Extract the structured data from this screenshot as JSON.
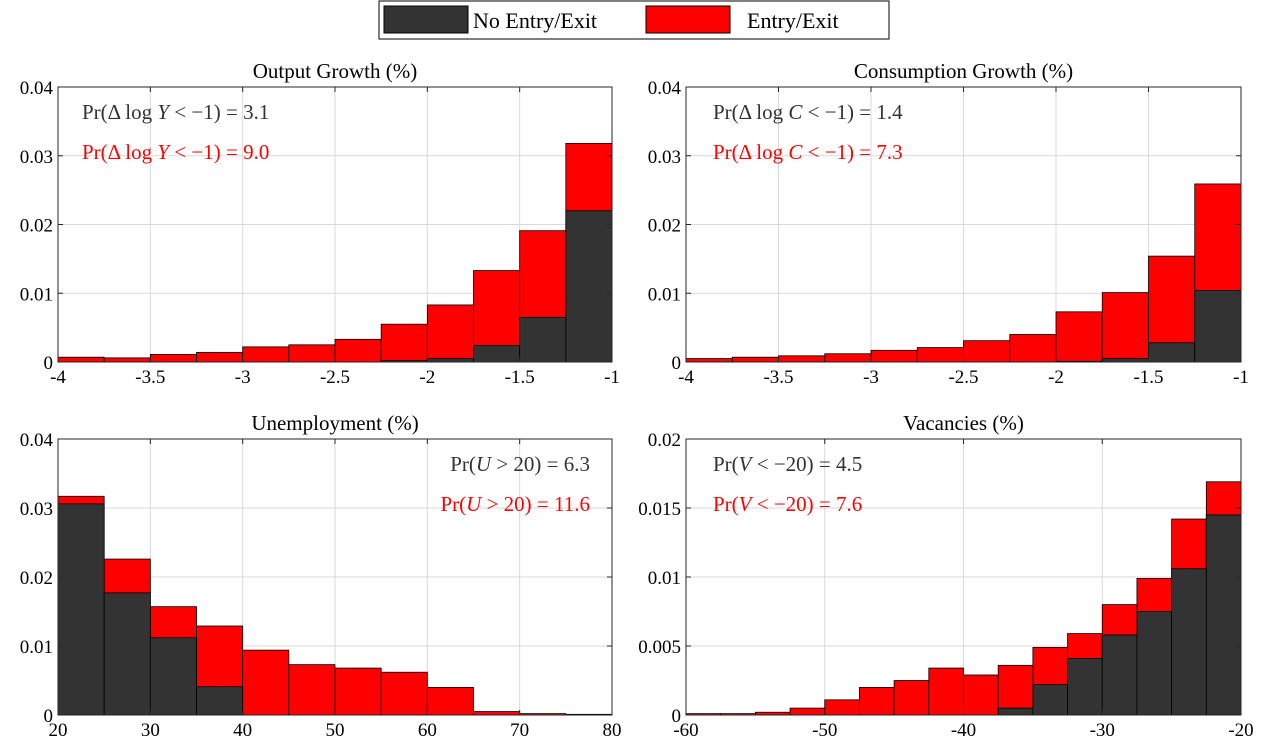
{
  "legend": {
    "entries": [
      {
        "label": "No Entry/Exit",
        "color": "#333333"
      },
      {
        "label": "Entry/Exit",
        "color": "#ff0000"
      }
    ]
  },
  "colors": {
    "no_entry_exit": "#333333",
    "entry_exit": "#ff0000"
  },
  "chart_data": [
    {
      "type": "bar",
      "subtype": "overlaid-histogram",
      "title": "Output Growth (%)",
      "xlim": [
        -4,
        -1
      ],
      "ylim": [
        0,
        0.04
      ],
      "xticks": [
        -4,
        -3.5,
        -3,
        -2.5,
        -2,
        -1.5,
        -1
      ],
      "xtick_labels": [
        "-4",
        "-3.5",
        "-3",
        "-2.5",
        "-2",
        "-1.5",
        "-1"
      ],
      "yticks": [
        0,
        0.01,
        0.02,
        0.03,
        0.04
      ],
      "ytick_labels": [
        "0",
        "0.01",
        "0.02",
        "0.03",
        "0.04"
      ],
      "grid": true,
      "bin_edges": [
        -4,
        -3.75,
        -3.5,
        -3.25,
        -3,
        -2.75,
        -2.5,
        -2.25,
        -2,
        -1.75,
        -1.5,
        -1.25,
        -1
      ],
      "series": [
        {
          "name": "Entry/Exit",
          "color": "#ff0000",
          "values": [
            0.0007,
            0.0006,
            0.0011,
            0.0014,
            0.0022,
            0.0025,
            0.0033,
            0.0055,
            0.0083,
            0.0133,
            0.0191,
            0.0318
          ]
        },
        {
          "name": "No Entry/Exit",
          "color": "#333333",
          "values": [
            0,
            0,
            0,
            0,
            0,
            0,
            0,
            0.0002,
            0.0005,
            0.0024,
            0.0065,
            0.022
          ]
        }
      ],
      "annotations": [
        {
          "text": "Pr(Δ log Y < −1) = 3.1",
          "color": "#333333"
        },
        {
          "text": "Pr(Δ log Y < −1) = 9.0",
          "color": "#ff0000"
        }
      ]
    },
    {
      "type": "bar",
      "subtype": "overlaid-histogram",
      "title": "Consumption Growth (%)",
      "xlim": [
        -4,
        -1
      ],
      "ylim": [
        0,
        0.04
      ],
      "xticks": [
        -4,
        -3.5,
        -3,
        -2.5,
        -2,
        -1.5,
        -1
      ],
      "xtick_labels": [
        "-4",
        "-3.5",
        "-3",
        "-2.5",
        "-2",
        "-1.5",
        "-1"
      ],
      "yticks": [
        0,
        0.01,
        0.02,
        0.03,
        0.04
      ],
      "ytick_labels": [
        "0",
        "0.01",
        "0.02",
        "0.03",
        "0.04"
      ],
      "grid": true,
      "bin_edges": [
        -4,
        -3.75,
        -3.5,
        -3.25,
        -3,
        -2.75,
        -2.5,
        -2.25,
        -2,
        -1.75,
        -1.5,
        -1.25,
        -1
      ],
      "series": [
        {
          "name": "Entry/Exit",
          "color": "#ff0000",
          "values": [
            0.0005,
            0.0007,
            0.0009,
            0.0012,
            0.0017,
            0.0021,
            0.0031,
            0.004,
            0.0073,
            0.0101,
            0.0154,
            0.0259
          ]
        },
        {
          "name": "No Entry/Exit",
          "color": "#333333",
          "values": [
            0,
            0,
            0,
            0,
            0,
            0,
            0,
            0,
            0.0001,
            0.0005,
            0.0028,
            0.0104
          ]
        }
      ],
      "annotations": [
        {
          "text": "Pr(Δ log C < −1) = 1.4",
          "color": "#333333"
        },
        {
          "text": "Pr(Δ log C < −1) = 7.3",
          "color": "#ff0000"
        }
      ]
    },
    {
      "type": "bar",
      "subtype": "overlaid-histogram",
      "title": "Unemployment (%)",
      "xlim": [
        20,
        80
      ],
      "ylim": [
        0,
        0.04
      ],
      "xticks": [
        20,
        30,
        40,
        50,
        60,
        70,
        80
      ],
      "xtick_labels": [
        "20",
        "30",
        "40",
        "50",
        "60",
        "70",
        "80"
      ],
      "yticks": [
        0,
        0.01,
        0.02,
        0.03,
        0.04
      ],
      "ytick_labels": [
        "0",
        "0.01",
        "0.02",
        "0.03",
        "0.04"
      ],
      "grid": true,
      "bin_edges": [
        20,
        25,
        30,
        35,
        40,
        45,
        50,
        55,
        60,
        65,
        70,
        75,
        80
      ],
      "series": [
        {
          "name": "Entry/Exit",
          "color": "#ff0000",
          "values": [
            0.0317,
            0.0226,
            0.0157,
            0.0129,
            0.0094,
            0.0073,
            0.0068,
            0.0062,
            0.004,
            0.0005,
            0.0002,
            0.0001
          ]
        },
        {
          "name": "No Entry/Exit",
          "color": "#333333",
          "values": [
            0.0306,
            0.0177,
            0.0112,
            0.0041,
            0,
            0,
            0,
            0,
            0,
            0,
            0,
            0
          ]
        }
      ],
      "annotations": [
        {
          "text": "Pr(U > 20) = 6.3",
          "color": "#333333"
        },
        {
          "text": "Pr(U > 20) = 11.6",
          "color": "#ff0000"
        }
      ]
    },
    {
      "type": "bar",
      "subtype": "overlaid-histogram",
      "title": "Vacancies (%)",
      "xlim": [
        -60,
        -20
      ],
      "ylim": [
        0,
        0.02
      ],
      "xticks": [
        -60,
        -50,
        -40,
        -30,
        -20
      ],
      "xtick_labels": [
        "-60",
        "-50",
        "-40",
        "-30",
        "-20"
      ],
      "yticks": [
        0,
        0.005,
        0.01,
        0.015,
        0.02
      ],
      "ytick_labels": [
        "0",
        "0.005",
        "0.01",
        "0.015",
        "0.02"
      ],
      "grid": true,
      "bin_edges": [
        -60,
        -57.5,
        -55,
        -52.5,
        -50,
        -47.5,
        -45,
        -42.5,
        -40,
        -37.5,
        -35,
        -32.5,
        -30,
        -27.5,
        -25,
        -22.5,
        -20
      ],
      "series": [
        {
          "name": "Entry/Exit",
          "color": "#ff0000",
          "values": [
            0.0001,
            0.0001,
            0.0002,
            0.0005,
            0.0011,
            0.002,
            0.0025,
            0.0034,
            0.0029,
            0.0036,
            0.0049,
            0.0059,
            0.008,
            0.0099,
            0.0142,
            0.0169
          ]
        },
        {
          "name": "No Entry/Exit",
          "color": "#333333",
          "values": [
            0,
            0,
            0,
            0,
            0,
            0,
            0,
            0,
            0,
            0.0005,
            0.0022,
            0.0041,
            0.0058,
            0.0075,
            0.0106,
            0.0145
          ]
        }
      ],
      "annotations": [
        {
          "text": "Pr(V < −20) = 4.5",
          "color": "#333333"
        },
        {
          "text": "Pr(V < −20) = 7.6",
          "color": "#ff0000"
        }
      ]
    }
  ]
}
